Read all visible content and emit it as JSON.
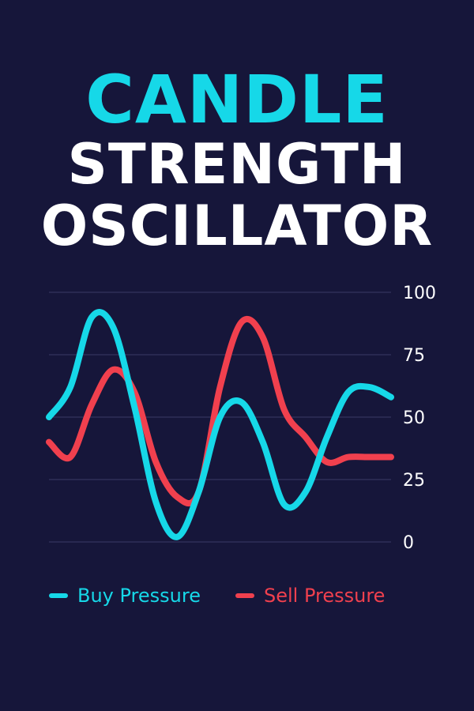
{
  "title": {
    "line1": "CANDLE",
    "line2": "STRENGTH",
    "line3": "OSCILLATOR"
  },
  "colors": {
    "background": "#16163a",
    "accent": "#16d8e8",
    "buy": "#16d8e8",
    "sell": "#f0404e",
    "grid": "#3a3a66"
  },
  "chart_data": {
    "type": "line",
    "title": "CANDLE STRENGTH OSCILLATOR",
    "ylim": [
      0,
      100
    ],
    "y_ticks": [
      "100",
      "75",
      "50",
      "25",
      "0"
    ],
    "grid": true,
    "legend_position": "bottom",
    "x": [
      0,
      1,
      2,
      3,
      4,
      5,
      6,
      7,
      8,
      9,
      10,
      11,
      12,
      13,
      14,
      15,
      16
    ],
    "series": [
      {
        "name": "Buy Pressure",
        "color": "#16d8e8",
        "values": [
          50,
          62,
          90,
          86,
          54,
          16,
          2,
          20,
          50,
          56,
          40,
          15,
          20,
          42,
          60,
          62,
          58
        ]
      },
      {
        "name": "Sell Pressure",
        "color": "#f0404e",
        "values": [
          40,
          34,
          55,
          69,
          60,
          32,
          18,
          20,
          62,
          88,
          82,
          53,
          42,
          32,
          34,
          34,
          34
        ]
      }
    ]
  }
}
